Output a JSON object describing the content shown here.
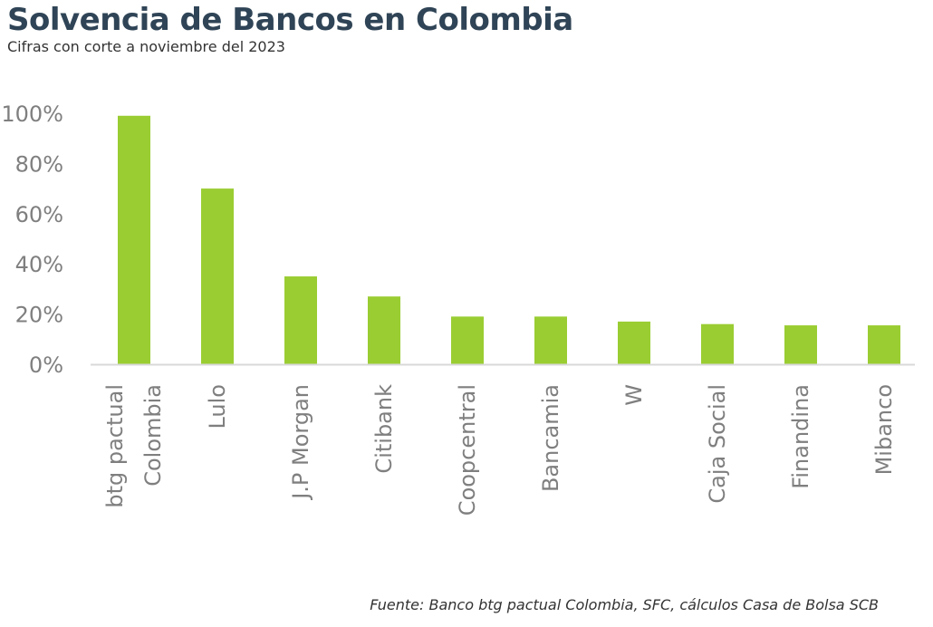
{
  "title": "Solvencia de Bancos en Colombia",
  "subtitle": "Cifras con corte a noviembre del 2023",
  "source": "Fuente: Banco btg pactual Colombia, SFC, cálculos Casa de Bolsa SCB",
  "colors": {
    "bar": "#9acd32",
    "axis_text": "#7f7f7f",
    "axis_line": "#d9d9d9"
  },
  "chart_data": {
    "type": "bar",
    "categories": [
      [
        "btg pactual",
        "Colombia"
      ],
      [
        "Lulo"
      ],
      [
        "J.P Morgan"
      ],
      [
        "Citibank"
      ],
      [
        "Coopcentral"
      ],
      [
        "Bancamia"
      ],
      [
        "W"
      ],
      [
        "Caja Social"
      ],
      [
        "Finandina"
      ],
      [
        "Mibanco"
      ]
    ],
    "values": [
      99,
      70,
      35,
      27,
      19,
      19,
      17,
      16,
      15.5,
      15.5
    ],
    "yticks": [
      "0%",
      "20%",
      "40%",
      "60%",
      "80%",
      "100%"
    ],
    "ylim": [
      0,
      100
    ],
    "grid": false,
    "legend": "none"
  }
}
